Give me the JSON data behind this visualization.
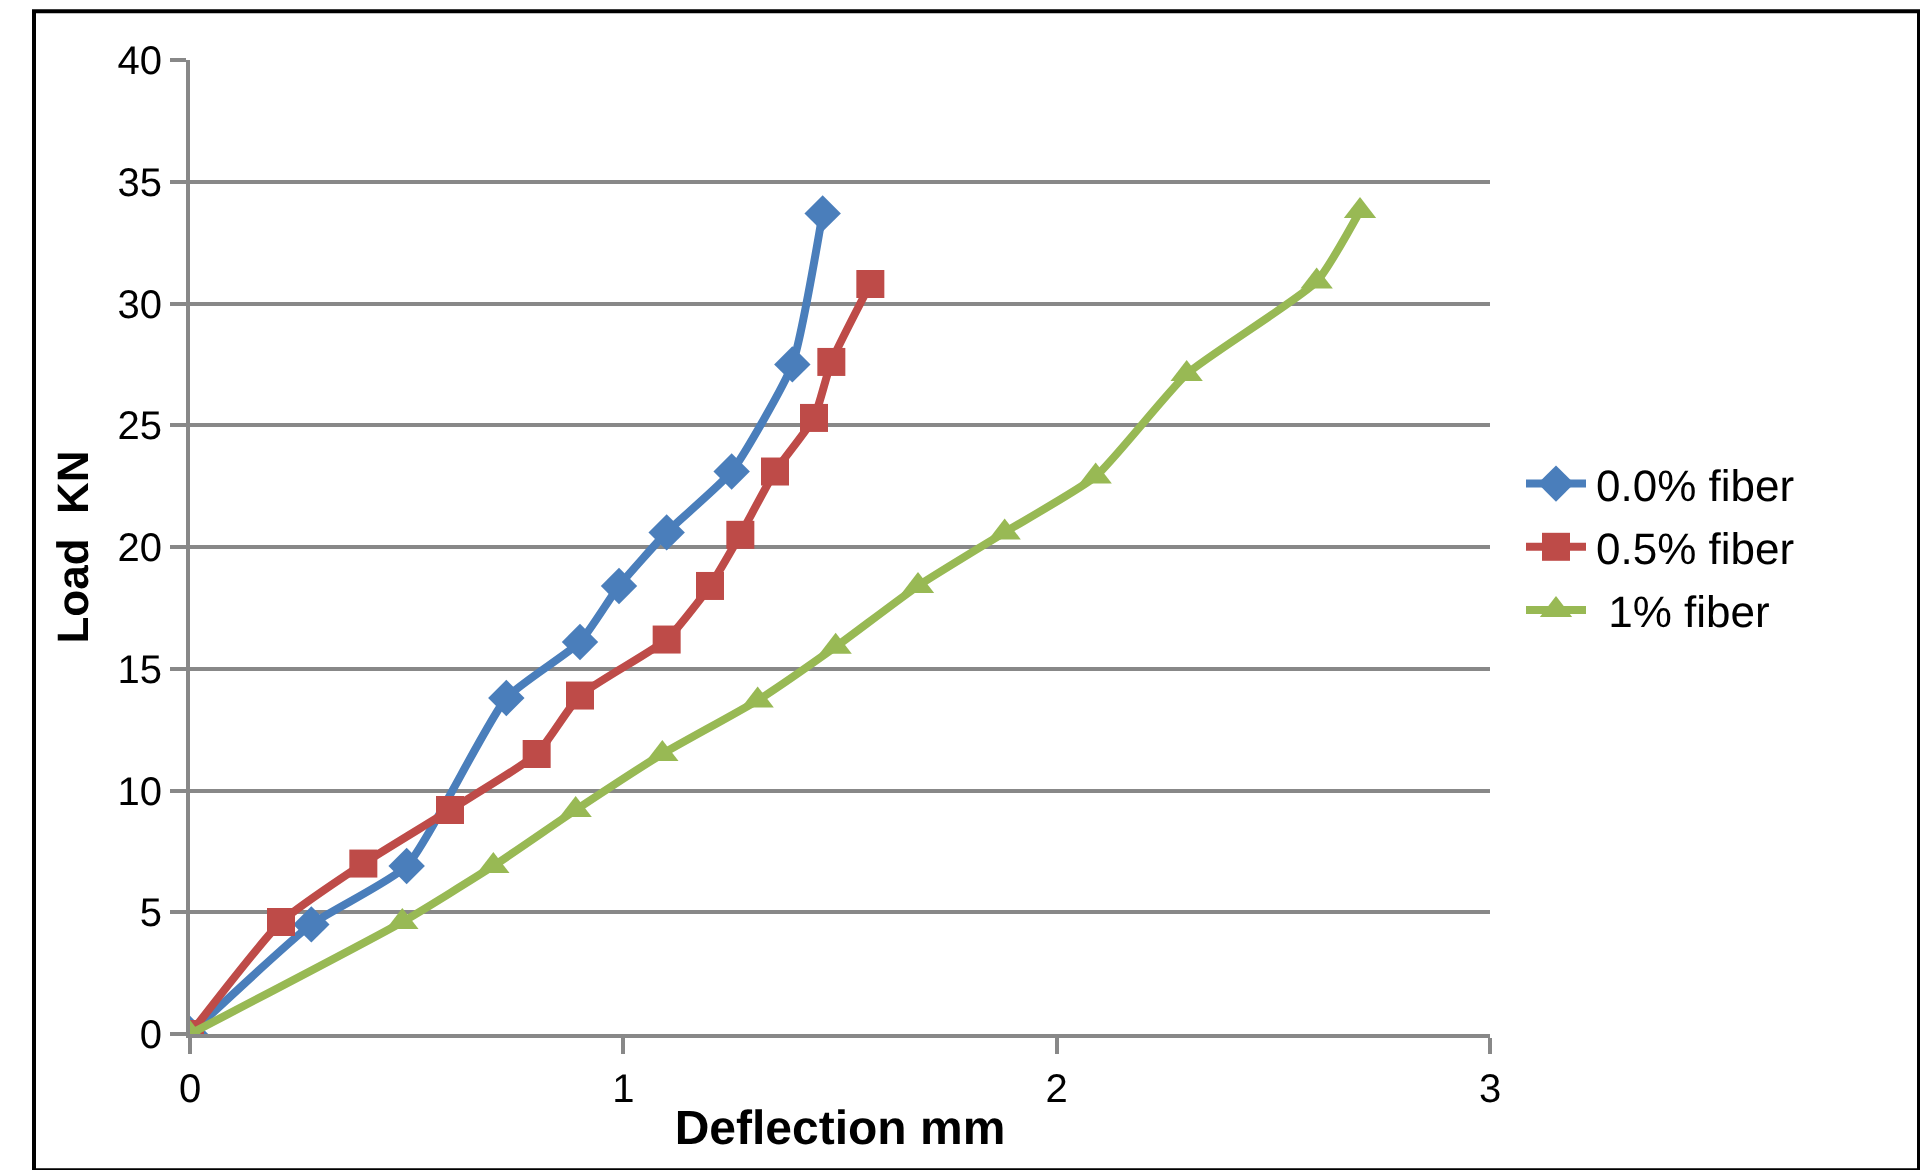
{
  "chart_data": {
    "type": "line",
    "xlabel": "Deflection mm",
    "ylabel": "Load  KN",
    "xlim": [
      0,
      3
    ],
    "xticks": [
      0,
      1,
      2,
      3
    ],
    "ylim": [
      0,
      40
    ],
    "yticks": [
      0,
      5,
      10,
      15,
      20,
      25,
      30,
      35,
      40
    ],
    "grid": "y",
    "legend": "right",
    "line_style": "solid",
    "series": [
      {
        "name": "0.0% fiber",
        "color": "#4a7ebb",
        "marker": "diamond",
        "x": [
          0,
          0.28,
          0.5,
          0.73,
          0.9,
          0.99,
          1.1,
          1.25,
          1.39,
          1.46
        ],
        "values": [
          0,
          4.5,
          6.9,
          13.8,
          16.1,
          18.4,
          20.6,
          23.1,
          27.5,
          33.7
        ]
      },
      {
        "name": "0.5% fiber",
        "color": "#be4b48",
        "marker": "square",
        "x": [
          0,
          0.21,
          0.4,
          0.6,
          0.8,
          0.9,
          1.1,
          1.2,
          1.27,
          1.35,
          1.44,
          1.48,
          1.57
        ],
        "values": [
          0,
          4.6,
          7.0,
          9.2,
          11.5,
          13.9,
          16.2,
          18.4,
          20.5,
          23.1,
          25.3,
          27.6,
          30.8
        ]
      },
      {
        "name": " 1% fiber",
        "color": "#98b954",
        "marker": "triangle",
        "x": [
          0,
          0.49,
          0.7,
          0.89,
          1.09,
          1.31,
          1.49,
          1.68,
          1.88,
          2.09,
          2.3,
          2.6,
          2.7
        ],
        "values": [
          0,
          4.6,
          6.9,
          9.2,
          11.5,
          13.7,
          15.9,
          18.4,
          20.6,
          22.9,
          27.1,
          30.9,
          33.8
        ]
      }
    ]
  }
}
